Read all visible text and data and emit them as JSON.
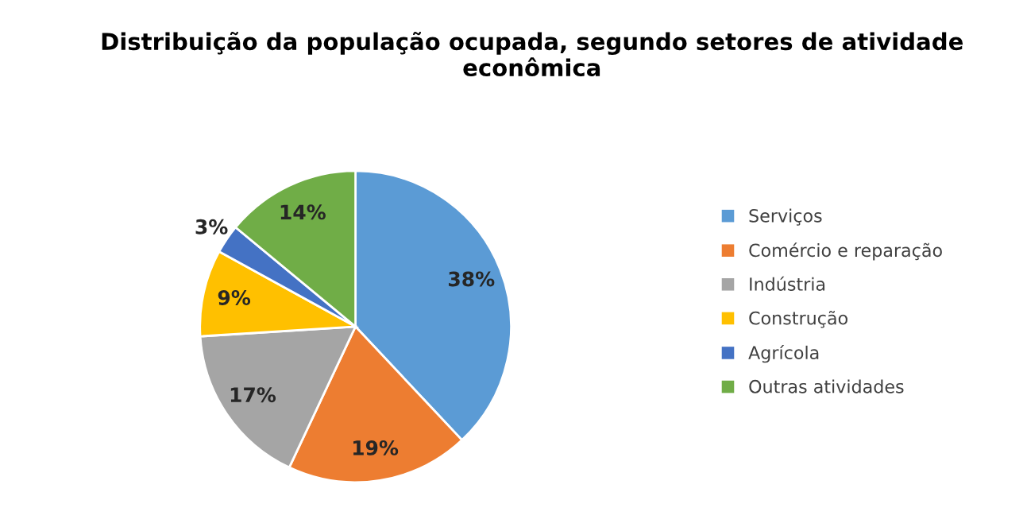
{
  "chart_data": {
    "type": "pie",
    "title": "Distribuição da população ocupada, segundo setores de atividade\neconômica",
    "categories": [
      "Serviços",
      "Comércio e reparação",
      "Indústria",
      "Construção",
      "Agrícola",
      "Outras atividades"
    ],
    "values": [
      38,
      19,
      17,
      9,
      3,
      14
    ],
    "colors": [
      "#5b9bd5",
      "#ed7d31",
      "#a5a5a5",
      "#ffc000",
      "#4472c4",
      "#70ad47"
    ],
    "value_labels": [
      "38%",
      "19%",
      "17%",
      "9%",
      "3%",
      "14%"
    ],
    "legend": "right"
  }
}
